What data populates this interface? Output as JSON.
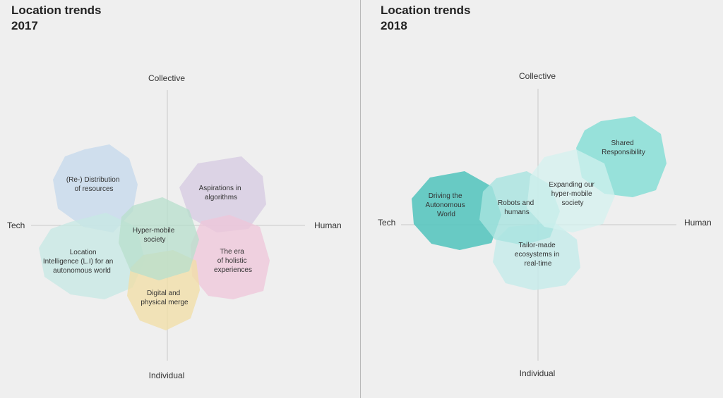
{
  "panels": [
    {
      "title_line1": "Location trends",
      "title_line2": "2017",
      "axes": {
        "top": "Collective",
        "bottom": "Individual",
        "left": "Tech",
        "right": "Human"
      },
      "blobs": [
        {
          "name": "blob-re-distribution",
          "lines": [
            "(Re-) Distribution",
            "of resources"
          ],
          "color": "#c5d9ec"
        },
        {
          "name": "blob-location-intelligence",
          "lines": [
            "Location",
            "Intelligence (L.I)   for an",
            "autonomous world"
          ],
          "color": "#c7e8e4"
        },
        {
          "name": "blob-aspirations",
          "lines": [
            "Aspirations in",
            "algorithms"
          ],
          "color": "#d6cbe2"
        },
        {
          "name": "blob-era-holistic",
          "lines": [
            "The era",
            "of holistic",
            "experiences"
          ],
          "color": "#eec7da"
        },
        {
          "name": "blob-digital-physical",
          "lines": [
            "Digital and",
            "physical merge"
          ],
          "color": "#f1dea6"
        },
        {
          "name": "blob-hyper-mobile",
          "lines": [
            "Hyper-mobile",
            "society"
          ],
          "color": "#b9dfcd"
        }
      ]
    },
    {
      "title_line1": "Location trends",
      "title_line2": "2018",
      "axes": {
        "top": "Collective",
        "bottom": "Individual",
        "left": "Tech",
        "right": "Human"
      },
      "blobs": [
        {
          "name": "blob-shared-responsibility",
          "lines": [
            "Shared",
            "Responsibility"
          ],
          "color": "#8fe0d8"
        },
        {
          "name": "blob-tailor-made",
          "lines": [
            "Tailor-made",
            "ecosystems in",
            "real-time"
          ],
          "color": "#c6ebea"
        },
        {
          "name": "blob-driving-autonomous",
          "lines": [
            "Driving the",
            "Autonomous",
            "World"
          ],
          "color": "#5cc7c0"
        },
        {
          "name": "blob-robots-humans",
          "lines": [
            "Robots and",
            "humans"
          ],
          "color": "#a8e4e0"
        },
        {
          "name": "blob-expanding-hyper-mobile",
          "lines": [
            "Expanding our",
            "hyper-mobile",
            "society"
          ],
          "color": "#d2f1ee"
        }
      ]
    }
  ]
}
